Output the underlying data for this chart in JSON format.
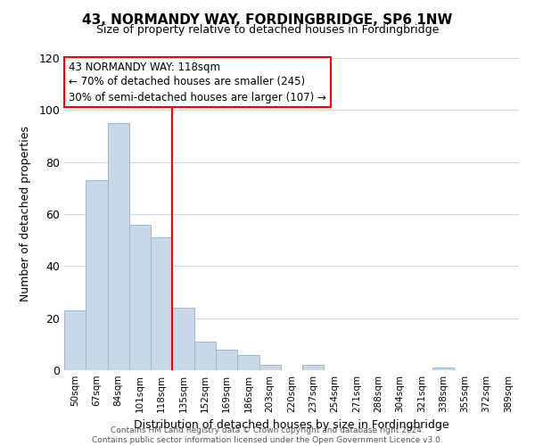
{
  "title": "43, NORMANDY WAY, FORDINGBRIDGE, SP6 1NW",
  "subtitle": "Size of property relative to detached houses in Fordingbridge",
  "xlabel": "Distribution of detached houses by size in Fordingbridge",
  "ylabel": "Number of detached properties",
  "bin_labels": [
    "50sqm",
    "67sqm",
    "84sqm",
    "101sqm",
    "118sqm",
    "135sqm",
    "152sqm",
    "169sqm",
    "186sqm",
    "203sqm",
    "220sqm",
    "237sqm",
    "254sqm",
    "271sqm",
    "288sqm",
    "304sqm",
    "321sqm",
    "338sqm",
    "355sqm",
    "372sqm",
    "389sqm"
  ],
  "bar_heights": [
    23,
    73,
    95,
    56,
    51,
    24,
    11,
    8,
    6,
    2,
    0,
    2,
    0,
    0,
    0,
    0,
    0,
    1,
    0,
    0,
    0
  ],
  "bar_color": "#c8d8e8",
  "bar_edge_color": "#9fb8cc",
  "vline_color": "red",
  "annotation_lines": [
    "43 NORMANDY WAY: 118sqm",
    "← 70% of detached houses are smaller (245)",
    "30% of semi-detached houses are larger (107) →"
  ],
  "ylim": [
    0,
    120
  ],
  "yticks": [
    0,
    20,
    40,
    60,
    80,
    100,
    120
  ],
  "footer": "Contains HM Land Registry data © Crown copyright and database right 2024.\nContains public sector information licensed under the Open Government Licence v3.0.",
  "bg_color": "#ffffff",
  "grid_color": "#d0d8e0"
}
